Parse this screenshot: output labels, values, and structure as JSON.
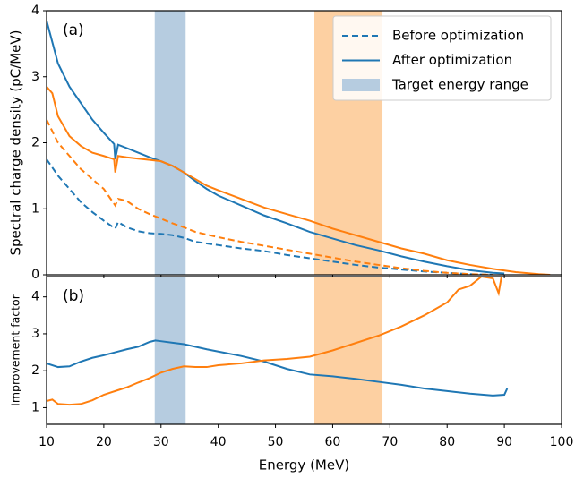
{
  "chart_data": [
    {
      "type": "line",
      "annotation": "(a)",
      "ylabel": "Spectral charge density (pC/MeV)",
      "xlim": [
        10,
        100
      ],
      "xticks": [
        10,
        20,
        30,
        40,
        50,
        60,
        70,
        80,
        90,
        100
      ],
      "show_xtick_labels": false,
      "ylim": [
        0,
        4
      ],
      "yticks": [
        0,
        1,
        2,
        3,
        4
      ],
      "spans": [
        {
          "x0": 28.9,
          "x1": 34.3,
          "color": "#b6cce0"
        },
        {
          "x0": 56.8,
          "x1": 68.7,
          "color": "#fdd0a2"
        }
      ],
      "legend": {
        "position": "upper right",
        "items": [
          {
            "label": "Before optimization",
            "style": "dashed",
            "color": "#1f77b4"
          },
          {
            "label": "After optimization",
            "style": "solid",
            "color": "#1f77b4"
          },
          {
            "label": "Target energy range",
            "style": "patch",
            "color": "#b6cce0"
          }
        ]
      },
      "series": [
        {
          "color": "#1f77b4",
          "style": "dashed",
          "x": [
            10,
            12,
            14,
            16,
            18,
            20,
            22,
            22.5,
            24,
            26,
            28,
            30,
            32,
            34,
            36,
            40,
            44,
            48,
            52,
            56,
            60,
            64,
            68,
            72,
            76,
            80,
            84,
            88
          ],
          "values": [
            1.75,
            1.5,
            1.3,
            1.1,
            0.95,
            0.82,
            0.7,
            0.8,
            0.72,
            0.66,
            0.63,
            0.62,
            0.6,
            0.56,
            0.5,
            0.45,
            0.4,
            0.36,
            0.3,
            0.25,
            0.2,
            0.15,
            0.11,
            0.08,
            0.05,
            0.03,
            0.01,
            0
          ]
        },
        {
          "color": "#ff7f0e",
          "style": "dashed",
          "x": [
            10,
            12,
            14,
            16,
            18,
            20,
            22,
            22.5,
            24,
            26,
            28,
            30,
            32,
            34,
            36,
            40,
            44,
            48,
            52,
            56,
            60,
            64,
            68,
            72,
            76,
            80,
            84,
            88
          ],
          "values": [
            2.35,
            2.0,
            1.8,
            1.6,
            1.45,
            1.3,
            1.05,
            1.15,
            1.12,
            1.0,
            0.92,
            0.85,
            0.78,
            0.72,
            0.65,
            0.57,
            0.5,
            0.44,
            0.38,
            0.32,
            0.26,
            0.2,
            0.15,
            0.1,
            0.06,
            0.03,
            0.01,
            0
          ]
        },
        {
          "color": "#1f77b4",
          "style": "solid",
          "x": [
            10,
            12,
            14,
            16,
            18,
            20,
            21.8,
            22,
            22.5,
            24,
            26,
            28,
            30,
            32,
            34,
            36,
            38,
            40,
            44,
            48,
            52,
            56,
            60,
            64,
            68,
            72,
            76,
            80,
            84,
            88,
            90
          ],
          "values": [
            3.85,
            3.2,
            2.85,
            2.6,
            2.35,
            2.15,
            1.98,
            1.75,
            1.97,
            1.92,
            1.85,
            1.78,
            1.72,
            1.65,
            1.55,
            1.42,
            1.3,
            1.2,
            1.05,
            0.9,
            0.78,
            0.65,
            0.55,
            0.45,
            0.37,
            0.28,
            0.2,
            0.13,
            0.07,
            0.03,
            0.02
          ]
        },
        {
          "color": "#ff7f0e",
          "style": "solid",
          "x": [
            10,
            11,
            12,
            14,
            16,
            18,
            20,
            21.8,
            22,
            22.5,
            24,
            26,
            28,
            30,
            32,
            34,
            36,
            38,
            40,
            44,
            48,
            52,
            56,
            60,
            64,
            68,
            72,
            76,
            80,
            84,
            88,
            92,
            96,
            98
          ],
          "values": [
            2.85,
            2.75,
            2.4,
            2.1,
            1.95,
            1.85,
            1.8,
            1.75,
            1.55,
            1.8,
            1.78,
            1.76,
            1.74,
            1.72,
            1.65,
            1.55,
            1.45,
            1.35,
            1.28,
            1.15,
            1.02,
            0.92,
            0.82,
            0.7,
            0.6,
            0.5,
            0.4,
            0.32,
            0.22,
            0.15,
            0.09,
            0.04,
            0.01,
            0
          ]
        }
      ]
    },
    {
      "type": "line",
      "annotation": "(b)",
      "ylabel": "Improvement factor",
      "xlabel": "Energy (MeV)",
      "xlim": [
        10,
        100
      ],
      "xticks": [
        10,
        20,
        30,
        40,
        50,
        60,
        70,
        80,
        90,
        100
      ],
      "show_xtick_labels": true,
      "ylim": [
        0.55,
        4.55
      ],
      "yticks": [
        1,
        2,
        3,
        4
      ],
      "spans": [
        {
          "x0": 28.9,
          "x1": 34.3,
          "color": "#b6cce0"
        },
        {
          "x0": 56.8,
          "x1": 68.7,
          "color": "#fdd0a2"
        }
      ],
      "series": [
        {
          "color": "#1f77b4",
          "style": "solid",
          "x": [
            10,
            12,
            14,
            16,
            18,
            20,
            22,
            24,
            26,
            28,
            29,
            30,
            32,
            34,
            36,
            38,
            40,
            44,
            48,
            52,
            56,
            60,
            64,
            68,
            72,
            76,
            80,
            84,
            88,
            90,
            90.5
          ],
          "values": [
            2.2,
            2.1,
            2.12,
            2.25,
            2.35,
            2.42,
            2.5,
            2.58,
            2.65,
            2.78,
            2.82,
            2.8,
            2.76,
            2.72,
            2.65,
            2.58,
            2.52,
            2.4,
            2.25,
            2.05,
            1.9,
            1.85,
            1.78,
            1.7,
            1.62,
            1.52,
            1.45,
            1.38,
            1.33,
            1.35,
            1.52
          ]
        },
        {
          "color": "#ff7f0e",
          "style": "solid",
          "x": [
            10,
            11,
            12,
            14,
            16,
            18,
            20,
            22,
            24,
            26,
            28,
            30,
            32,
            34,
            36,
            38,
            40,
            44,
            48,
            52,
            56,
            60,
            64,
            68,
            72,
            76,
            80,
            82,
            84,
            86,
            88,
            89,
            89.5
          ],
          "values": [
            1.18,
            1.22,
            1.1,
            1.08,
            1.1,
            1.2,
            1.35,
            1.45,
            1.55,
            1.68,
            1.8,
            1.95,
            2.05,
            2.12,
            2.1,
            2.1,
            2.15,
            2.2,
            2.28,
            2.32,
            2.38,
            2.55,
            2.75,
            2.95,
            3.2,
            3.5,
            3.85,
            4.2,
            4.3,
            4.55,
            4.5,
            4.1,
            4.55
          ]
        }
      ]
    }
  ]
}
